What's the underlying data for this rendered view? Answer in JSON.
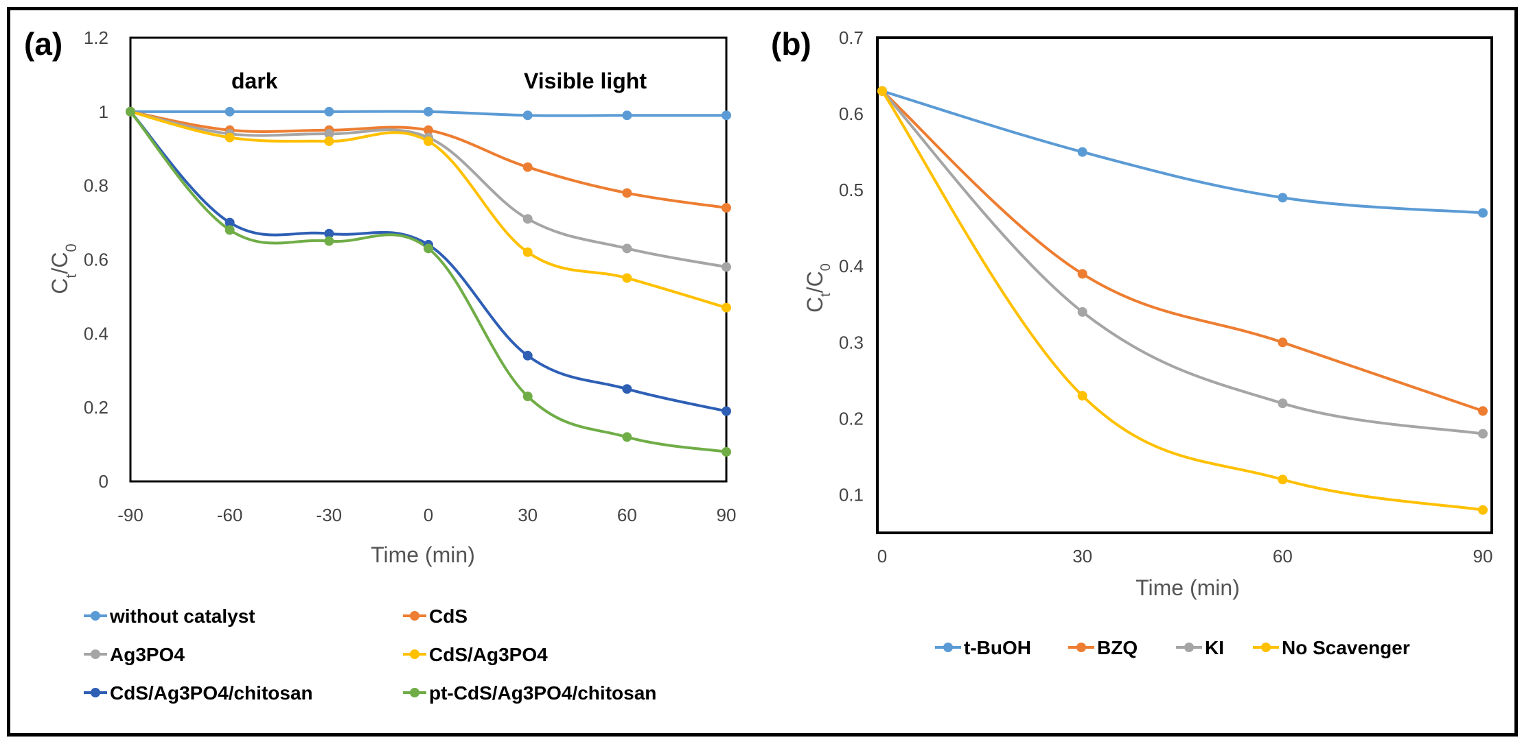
{
  "chart_data": [
    {
      "type": "line",
      "panel_label": "(a)",
      "xlabel": "Time (min)",
      "ylabel_main": "C",
      "ylabel_sub1": "t",
      "ylabel_sep": "/C",
      "ylabel_sub2": "0",
      "x": [
        -90,
        -60,
        -30,
        0,
        30,
        60,
        90
      ],
      "x_ticks": [
        "-90",
        "-60",
        "-30",
        "0",
        "30",
        "60",
        "90"
      ],
      "ylim": [
        0,
        1.2
      ],
      "y_ticks": [
        "0",
        "0.2",
        "0.4",
        "0.6",
        "0.8",
        "1",
        "1.2"
      ],
      "annotations": [
        {
          "text": "dark",
          "x": -75,
          "y": 1.08
        },
        {
          "text": "Visible light",
          "x": 48,
          "y": 1.08
        }
      ],
      "series": [
        {
          "name": "without catalyst",
          "color": "#5b9bd5",
          "values": [
            1.0,
            1.0,
            1.0,
            1.0,
            0.99,
            0.99,
            0.99
          ]
        },
        {
          "name": "CdS",
          "color": "#ed7d31",
          "values": [
            1.0,
            0.95,
            0.95,
            0.95,
            0.85,
            0.78,
            0.74
          ]
        },
        {
          "name": "Ag3PO4",
          "color": "#a5a5a5",
          "values": [
            1.0,
            0.94,
            0.94,
            0.93,
            0.71,
            0.63,
            0.58
          ]
        },
        {
          "name": "CdS/Ag3PO4",
          "color": "#ffc000",
          "values": [
            1.0,
            0.93,
            0.92,
            0.92,
            0.62,
            0.55,
            0.47
          ]
        },
        {
          "name": "CdS/Ag3PO4/chitosan",
          "color": "#2e5fb5",
          "values": [
            1.0,
            0.7,
            0.67,
            0.64,
            0.34,
            0.25,
            0.19
          ]
        },
        {
          "name": "pt-CdS/Ag3PO4/chitosan",
          "color": "#70ad47",
          "values": [
            1.0,
            0.68,
            0.65,
            0.63,
            0.23,
            0.12,
            0.08
          ]
        }
      ]
    },
    {
      "type": "line",
      "panel_label": "(b)",
      "xlabel": "Time (min)",
      "ylabel_main": "C",
      "ylabel_sub1": "t",
      "ylabel_sep": "/C",
      "ylabel_sub2": "0",
      "x": [
        0,
        30,
        60,
        90
      ],
      "x_ticks": [
        "0",
        "30",
        "60",
        "90"
      ],
      "ylim": [
        0.05,
        0.7
      ],
      "y_ticks": [
        "0.1",
        "0.2",
        "0.3",
        "0.4",
        "0.5",
        "0.6",
        "0.7"
      ],
      "series": [
        {
          "name": "t-BuOH",
          "color": "#5b9bd5",
          "values": [
            0.63,
            0.55,
            0.49,
            0.47
          ]
        },
        {
          "name": "BZQ",
          "color": "#ed7d31",
          "values": [
            0.63,
            0.39,
            0.3,
            0.21
          ]
        },
        {
          "name": "KI",
          "color": "#a5a5a5",
          "values": [
            0.63,
            0.34,
            0.22,
            0.18
          ]
        },
        {
          "name": "No Scavenger",
          "color": "#ffc000",
          "values": [
            0.63,
            0.23,
            0.12,
            0.08
          ]
        }
      ]
    }
  ]
}
